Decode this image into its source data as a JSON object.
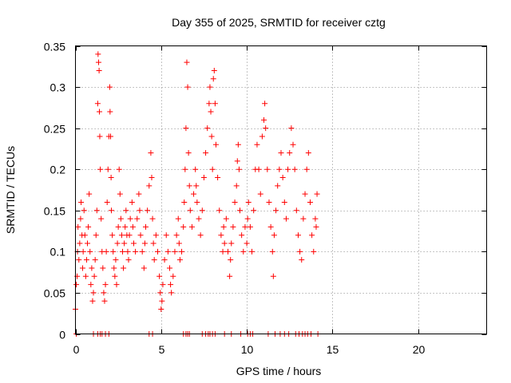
{
  "chart_data": {
    "type": "scatter",
    "title": "Day 355 of 2025, SRMTID for receiver cztg",
    "xlabel": "GPS time / hours",
    "ylabel": "SRMTID / TECUs",
    "xlim": [
      0,
      24
    ],
    "ylim": [
      0,
      0.35
    ],
    "xticks": [
      0,
      5,
      10,
      15,
      20
    ],
    "xtick_labels": [
      "0",
      "5",
      "10",
      "15",
      "20"
    ],
    "yticks": [
      0,
      0.05,
      0.1,
      0.15,
      0.2,
      0.25,
      0.3,
      0.35
    ],
    "ytick_labels": [
      "0",
      "0.05",
      "0.1",
      "0.15",
      "0.2",
      "0.25",
      "0.3",
      "0.35"
    ],
    "grid": true,
    "marker": "+",
    "marker_color": "#ff0000",
    "series": [
      {
        "points": [
          [
            0.0,
            0.03
          ],
          [
            0.05,
            0.06
          ],
          [
            0.1,
            0.07
          ],
          [
            0.12,
            0.1
          ],
          [
            0.15,
            0.13
          ],
          [
            0.2,
            0.09
          ],
          [
            0.25,
            0.11
          ],
          [
            0.3,
            0.14
          ],
          [
            0.33,
            0.16
          ],
          [
            0.38,
            0.12
          ],
          [
            0.42,
            0.08
          ],
          [
            0.45,
            0.1
          ],
          [
            0.5,
            0.15
          ],
          [
            0.55,
            0.12
          ],
          [
            0.6,
            0.07
          ],
          [
            0.65,
            0.09
          ],
          [
            0.7,
            0.11
          ],
          [
            0.75,
            0.13
          ],
          [
            0.8,
            0.17
          ],
          [
            0.85,
            0.1
          ],
          [
            0.9,
            0.06
          ],
          [
            0.95,
            0.08
          ],
          [
            1.0,
            0.04
          ],
          [
            1.05,
            0.05
          ],
          [
            1.1,
            0.07
          ],
          [
            1.15,
            0.09
          ],
          [
            1.2,
            0.12
          ],
          [
            1.25,
            0.15
          ],
          [
            1.3,
            0.28
          ],
          [
            1.32,
            0.34
          ],
          [
            1.35,
            0.33
          ],
          [
            1.38,
            0.32
          ],
          [
            1.4,
            0.27
          ],
          [
            1.42,
            0.24
          ],
          [
            1.45,
            0.2
          ],
          [
            1.5,
            0.14
          ],
          [
            1.55,
            0.1
          ],
          [
            1.6,
            0.08
          ],
          [
            1.65,
            0.05
          ],
          [
            1.7,
            0.04
          ],
          [
            1.75,
            0.06
          ],
          [
            1.8,
            0.1
          ],
          [
            1.85,
            0.16
          ],
          [
            1.9,
            0.2
          ],
          [
            1.95,
            0.24
          ],
          [
            2.0,
            0.3
          ],
          [
            2.02,
            0.27
          ],
          [
            2.05,
            0.24
          ],
          [
            2.08,
            0.19
          ],
          [
            2.1,
            0.15
          ],
          [
            2.15,
            0.12
          ],
          [
            2.2,
            0.1
          ],
          [
            2.25,
            0.08
          ],
          [
            2.3,
            0.07
          ],
          [
            2.35,
            0.09
          ],
          [
            2.4,
            0.06
          ],
          [
            2.45,
            0.11
          ],
          [
            2.5,
            0.13
          ],
          [
            2.55,
            0.2
          ],
          [
            2.6,
            0.17
          ],
          [
            2.65,
            0.14
          ],
          [
            2.7,
            0.12
          ],
          [
            2.75,
            0.1
          ],
          [
            2.8,
            0.08
          ],
          [
            2.85,
            0.11
          ],
          [
            2.9,
            0.13
          ],
          [
            2.95,
            0.15
          ],
          [
            3.0,
            0.12
          ],
          [
            3.05,
            0.1
          ],
          [
            3.1,
            0.09
          ],
          [
            3.15,
            0.12
          ],
          [
            3.2,
            0.14
          ],
          [
            3.3,
            0.16
          ],
          [
            3.35,
            0.13
          ],
          [
            3.4,
            0.11
          ],
          [
            3.5,
            0.1
          ],
          [
            3.6,
            0.14
          ],
          [
            3.7,
            0.17
          ],
          [
            3.75,
            0.15
          ],
          [
            3.8,
            0.12
          ],
          [
            3.9,
            0.1
          ],
          [
            4.0,
            0.08
          ],
          [
            4.05,
            0.11
          ],
          [
            4.1,
            0.13
          ],
          [
            4.2,
            0.15
          ],
          [
            4.3,
            0.18
          ],
          [
            4.4,
            0.22
          ],
          [
            4.45,
            0.19
          ],
          [
            4.5,
            0.14
          ],
          [
            4.55,
            0.11
          ],
          [
            4.6,
            0.09
          ],
          [
            4.7,
            0.12
          ],
          [
            4.8,
            0.1
          ],
          [
            4.9,
            0.07
          ],
          [
            4.95,
            0.05
          ],
          [
            5.0,
            0.03
          ],
          [
            5.05,
            0.04
          ],
          [
            5.1,
            0.06
          ],
          [
            5.2,
            0.09
          ],
          [
            5.3,
            0.12
          ],
          [
            5.4,
            0.1
          ],
          [
            5.5,
            0.08
          ],
          [
            5.55,
            0.06
          ],
          [
            5.6,
            0.05
          ],
          [
            5.7,
            0.07
          ],
          [
            5.8,
            0.1
          ],
          [
            5.9,
            0.12
          ],
          [
            6.0,
            0.14
          ],
          [
            6.05,
            0.11
          ],
          [
            6.1,
            0.09
          ],
          [
            6.2,
            0.1
          ],
          [
            6.3,
            0.13
          ],
          [
            6.35,
            0.16
          ],
          [
            6.4,
            0.2
          ],
          [
            6.45,
            0.25
          ],
          [
            6.5,
            0.33
          ],
          [
            6.55,
            0.3
          ],
          [
            6.6,
            0.22
          ],
          [
            6.65,
            0.18
          ],
          [
            6.7,
            0.15
          ],
          [
            6.8,
            0.13
          ],
          [
            6.9,
            0.17
          ],
          [
            7.0,
            0.2
          ],
          [
            7.05,
            0.18
          ],
          [
            7.1,
            0.16
          ],
          [
            7.2,
            0.14
          ],
          [
            7.3,
            0.12
          ],
          [
            7.4,
            0.15
          ],
          [
            7.5,
            0.19
          ],
          [
            7.6,
            0.22
          ],
          [
            7.7,
            0.25
          ],
          [
            7.8,
            0.28
          ],
          [
            7.85,
            0.3
          ],
          [
            7.9,
            0.27
          ],
          [
            7.95,
            0.24
          ],
          [
            8.0,
            0.2
          ],
          [
            8.05,
            0.31
          ],
          [
            8.1,
            0.32
          ],
          [
            8.15,
            0.28
          ],
          [
            8.2,
            0.23
          ],
          [
            8.3,
            0.19
          ],
          [
            8.4,
            0.15
          ],
          [
            8.5,
            0.12
          ],
          [
            8.6,
            0.1
          ],
          [
            8.65,
            0.13
          ],
          [
            8.7,
            0.11
          ],
          [
            8.8,
            0.14
          ],
          [
            8.9,
            0.1
          ],
          [
            9.0,
            0.07
          ],
          [
            9.05,
            0.09
          ],
          [
            9.1,
            0.11
          ],
          [
            9.2,
            0.13
          ],
          [
            9.3,
            0.16
          ],
          [
            9.4,
            0.18
          ],
          [
            9.45,
            0.21
          ],
          [
            9.5,
            0.23
          ],
          [
            9.55,
            0.2
          ],
          [
            9.6,
            0.15
          ],
          [
            9.7,
            0.12
          ],
          [
            9.8,
            0.1
          ],
          [
            9.9,
            0.13
          ],
          [
            10.0,
            0.11
          ],
          [
            10.05,
            0.14
          ],
          [
            10.1,
            0.16
          ],
          [
            10.2,
            0.13
          ],
          [
            10.3,
            0.1
          ],
          [
            10.4,
            0.15
          ],
          [
            10.5,
            0.2
          ],
          [
            10.6,
            0.23
          ],
          [
            10.7,
            0.2
          ],
          [
            10.8,
            0.17
          ],
          [
            10.9,
            0.24
          ],
          [
            11.0,
            0.26
          ],
          [
            11.05,
            0.28
          ],
          [
            11.1,
            0.25
          ],
          [
            11.2,
            0.2
          ],
          [
            11.3,
            0.16
          ],
          [
            11.4,
            0.13
          ],
          [
            11.5,
            0.1
          ],
          [
            11.55,
            0.07
          ],
          [
            11.6,
            0.12
          ],
          [
            11.7,
            0.15
          ],
          [
            11.8,
            0.18
          ],
          [
            11.9,
            0.2
          ],
          [
            12.0,
            0.22
          ],
          [
            12.1,
            0.19
          ],
          [
            12.2,
            0.16
          ],
          [
            12.3,
            0.14
          ],
          [
            12.4,
            0.2
          ],
          [
            12.5,
            0.22
          ],
          [
            12.6,
            0.25
          ],
          [
            12.7,
            0.23
          ],
          [
            12.8,
            0.2
          ],
          [
            12.9,
            0.15
          ],
          [
            13.0,
            0.12
          ],
          [
            13.1,
            0.1
          ],
          [
            13.2,
            0.09
          ],
          [
            13.3,
            0.14
          ],
          [
            13.4,
            0.17
          ],
          [
            13.5,
            0.2
          ],
          [
            13.6,
            0.22
          ],
          [
            13.7,
            0.16
          ],
          [
            13.8,
            0.12
          ],
          [
            13.9,
            0.1
          ],
          [
            14.0,
            0.14
          ],
          [
            14.05,
            0.13
          ],
          [
            14.1,
            0.17
          ],
          [
            0.05,
            0.0
          ],
          [
            1.05,
            0.0
          ],
          [
            1.3,
            0.0
          ],
          [
            1.45,
            0.0
          ],
          [
            1.55,
            0.0
          ],
          [
            1.75,
            0.0
          ],
          [
            1.95,
            0.0
          ],
          [
            4.3,
            0.0
          ],
          [
            4.5,
            0.0
          ],
          [
            6.3,
            0.0
          ],
          [
            6.45,
            0.0
          ],
          [
            6.55,
            0.0
          ],
          [
            6.65,
            0.0
          ],
          [
            7.4,
            0.0
          ],
          [
            7.6,
            0.0
          ],
          [
            7.75,
            0.0
          ],
          [
            7.85,
            0.0
          ],
          [
            8.0,
            0.0
          ],
          [
            8.15,
            0.0
          ],
          [
            8.7,
            0.0
          ],
          [
            9.1,
            0.0
          ],
          [
            9.65,
            0.0
          ],
          [
            10.05,
            0.0
          ],
          [
            10.2,
            0.0
          ],
          [
            10.35,
            0.0
          ],
          [
            11.25,
            0.0
          ],
          [
            11.65,
            0.0
          ],
          [
            11.95,
            0.0
          ],
          [
            12.2,
            0.0
          ],
          [
            12.45,
            0.0
          ],
          [
            12.85,
            0.0
          ],
          [
            13.05,
            0.0
          ],
          [
            13.25,
            0.0
          ],
          [
            13.4,
            0.0
          ],
          [
            13.55,
            0.0
          ],
          [
            13.75,
            0.0
          ],
          [
            14.15,
            0.0
          ]
        ]
      }
    ]
  }
}
